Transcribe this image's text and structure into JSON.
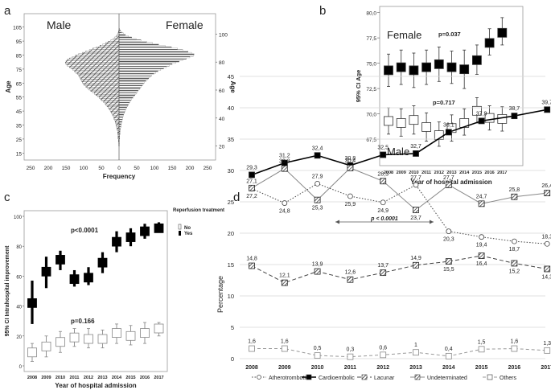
{
  "panels": {
    "a": {
      "letter": "a"
    },
    "b": {
      "letter": "b"
    },
    "c": {
      "letter": "c"
    },
    "d": {
      "letter": "d"
    }
  },
  "chart_data": [
    {
      "panel": "a",
      "type": "bar",
      "orientation": "horizontal-population-pyramid",
      "left_label": "Male",
      "right_label": "Female",
      "xlabel": "Frequency",
      "ylabel_left": "Age",
      "ylabel_right": "Age",
      "x_ticks_left": [
        "250",
        "200",
        "150",
        "100",
        "50",
        "0"
      ],
      "x_ticks_right": [
        "0",
        "50",
        "100",
        "150",
        "200",
        "250"
      ],
      "y_ticks_left": [
        "105",
        "95",
        "85",
        "75",
        "65",
        "55",
        "45",
        "35",
        "25",
        "15"
      ],
      "y_ticks_right": [
        "100",
        "80",
        "60",
        "40",
        "20"
      ],
      "ages": [
        15,
        16,
        17,
        18,
        19,
        20,
        21,
        22,
        23,
        24,
        25,
        26,
        27,
        28,
        29,
        30,
        31,
        32,
        33,
        34,
        35,
        36,
        37,
        38,
        39,
        40,
        41,
        42,
        43,
        44,
        45,
        46,
        47,
        48,
        49,
        50,
        51,
        52,
        53,
        54,
        55,
        56,
        57,
        58,
        59,
        60,
        61,
        62,
        63,
        64,
        65,
        66,
        67,
        68,
        69,
        70,
        71,
        72,
        73,
        74,
        75,
        76,
        77,
        78,
        79,
        80,
        81,
        82,
        83,
        84,
        85,
        86,
        87,
        88,
        89,
        90,
        91,
        92,
        93,
        94,
        95,
        96,
        97,
        98,
        99,
        100,
        101,
        102,
        103
      ],
      "male": [
        0,
        0,
        0,
        0,
        0,
        1,
        1,
        1,
        2,
        2,
        3,
        3,
        3,
        4,
        4,
        4,
        5,
        6,
        7,
        8,
        9,
        10,
        11,
        12,
        14,
        15,
        17,
        19,
        21,
        23,
        25,
        28,
        31,
        34,
        37,
        40,
        44,
        48,
        52,
        56,
        60,
        65,
        70,
        75,
        80,
        85,
        90,
        94,
        98,
        102,
        104,
        106,
        108,
        110,
        112,
        114,
        118,
        122,
        126,
        130,
        135,
        140,
        146,
        150,
        152,
        150,
        146,
        140,
        132,
        124,
        114,
        104,
        94,
        84,
        74,
        64,
        54,
        46,
        38,
        30,
        23,
        17,
        12,
        8,
        5,
        3,
        2,
        1,
        0
      ],
      "female": [
        0,
        0,
        0,
        0,
        0,
        1,
        1,
        1,
        1,
        1,
        2,
        2,
        2,
        3,
        3,
        3,
        4,
        4,
        5,
        6,
        6,
        7,
        8,
        9,
        10,
        11,
        12,
        13,
        15,
        16,
        18,
        20,
        22,
        24,
        26,
        28,
        30,
        33,
        36,
        39,
        42,
        45,
        48,
        51,
        54,
        57,
        60,
        63,
        66,
        69,
        72,
        76,
        80,
        84,
        88,
        92,
        98,
        104,
        110,
        118,
        126,
        134,
        142,
        150,
        160,
        170,
        180,
        190,
        200,
        210,
        212,
        205,
        195,
        180,
        165,
        148,
        130,
        112,
        95,
        78,
        62,
        48,
        36,
        26,
        18,
        12,
        7,
        4,
        2
      ]
    },
    {
      "panel": "b",
      "type": "scatter",
      "subtype": "error-bar",
      "xlabel": "Year of hospital admission",
      "ylabel": "95% CI Age",
      "categories": [
        "2008",
        "2009",
        "2010",
        "2011",
        "2012",
        "2013",
        "2014",
        "2015",
        "2016",
        "2017"
      ],
      "y_ticks": [
        "67,5",
        "70,0",
        "72,5",
        "75,0",
        "77,5",
        "80,0"
      ],
      "ylim": [
        66.0,
        80.5
      ],
      "series": [
        {
          "name": "Female",
          "marker": "filled-square",
          "mean": [
            74.3,
            74.6,
            74.3,
            74.6,
            74.9,
            74.6,
            74.4,
            75.3,
            77.0,
            78.0
          ],
          "low": [
            72.7,
            72.9,
            72.6,
            72.9,
            73.2,
            73.0,
            72.5,
            73.9,
            75.8,
            76.8
          ],
          "high": [
            75.9,
            76.3,
            76.0,
            76.3,
            76.6,
            76.2,
            76.3,
            76.8,
            78.4,
            79.5
          ]
        },
        {
          "name": "Male",
          "marker": "open-square",
          "mean": [
            69.3,
            69.1,
            69.4,
            68.7,
            67.9,
            68.6,
            69.1,
            70.3,
            69.6,
            69.5
          ],
          "low": [
            68.0,
            67.8,
            68.0,
            67.3,
            66.8,
            67.3,
            67.9,
            69.1,
            68.4,
            68.3
          ],
          "high": [
            70.6,
            70.5,
            70.8,
            70.1,
            69.2,
            69.9,
            70.5,
            71.6,
            70.8,
            70.7
          ]
        }
      ],
      "annotations": [
        "p=0.037",
        "p=0.717"
      ]
    },
    {
      "panel": "c",
      "type": "scatter",
      "subtype": "error-bar",
      "xlabel": "Year of hospital admission",
      "ylabel": "95% CI Intrahospital improvement",
      "categories": [
        "2008",
        "2009",
        "2010",
        "2011",
        "2012",
        "2013",
        "2014",
        "2015",
        "2016",
        "2017"
      ],
      "y_ticks": [
        "0",
        "20",
        "40",
        "60",
        "80",
        "100"
      ],
      "ylim": [
        0,
        105
      ],
      "legend_title": "Reperfusion treatment",
      "series": [
        {
          "name": "No",
          "marker": "open-square",
          "mean": [
            9,
            13,
            16,
            19,
            18,
            18,
            22,
            20,
            22,
            25
          ],
          "low": [
            3,
            6,
            9,
            13,
            12,
            12,
            15,
            14,
            15,
            20
          ],
          "high": [
            15,
            20,
            23,
            25,
            25,
            24,
            28,
            27,
            29,
            29
          ]
        },
        {
          "name": "Yes",
          "marker": "filled-square",
          "mean": [
            42,
            63,
            71,
            58,
            59,
            69,
            83,
            86,
            90,
            92
          ],
          "low": [
            28,
            52,
            64,
            53,
            54,
            62,
            76,
            80,
            85,
            89
          ],
          "high": [
            57,
            73,
            77,
            64,
            66,
            76,
            90,
            92,
            95,
            96
          ]
        }
      ],
      "annotations": [
        "p<0.0001",
        "p=0.166"
      ]
    },
    {
      "panel": "d",
      "type": "line",
      "xlabel": "",
      "ylabel": "Percentage",
      "categories": [
        "2008",
        "2009",
        "2010",
        "2011",
        "2012",
        "2013",
        "2014",
        "2015",
        "2016",
        "2017"
      ],
      "y_ticks": [
        "0",
        "5",
        "10",
        "15",
        "20",
        "25",
        "30",
        "35",
        "40",
        "45"
      ],
      "ylim": [
        0,
        45
      ],
      "annotation": "p < 0.0001",
      "series": [
        {
          "name": "Atherotrombotic",
          "style": "dotted-round",
          "values": [
            27.1,
            24.8,
            27.9,
            25.9,
            24.9,
            27.7,
            20.3,
            19.4,
            18.7,
            18.3
          ],
          "labels": [
            "27,1",
            "24,8",
            "27,9",
            "25,9",
            "24,9",
            "27,7",
            "20,3",
            "19,4",
            "18,7",
            "18,3"
          ]
        },
        {
          "name": "Cardioembolic",
          "style": "solid-filled-square",
          "values": [
            29.3,
            31.2,
            32.4,
            30.8,
            32.5,
            32.7,
            36.1,
            37.9,
            38.7,
            39.7
          ],
          "labels": [
            "29,3",
            "31,2",
            "32,4",
            "30,8",
            "32,5",
            "32,7",
            "36,1",
            "37,9",
            "38,7",
            "39,7"
          ]
        },
        {
          "name": "Lacunar",
          "style": "dashed-striped-square",
          "values": [
            14.8,
            12.1,
            13.9,
            12.6,
            13.7,
            14.9,
            15.5,
            16.4,
            15.2,
            14.3
          ],
          "labels": [
            "14,8",
            "12,1",
            "13,9",
            "12,6",
            "13,7",
            "14,9",
            "15,5",
            "16,4",
            "15,2",
            "14,3"
          ]
        },
        {
          "name": "Undeterminated",
          "style": "solid-striped-square",
          "values": [
            27.2,
            30.3,
            25.3,
            30.4,
            28.3,
            23.7,
            27.7,
            24.7,
            25.8,
            26.4
          ],
          "labels": [
            "27,2",
            "30,3",
            "25,3",
            "30,4",
            "28,3",
            "23,7",
            "27,7",
            "24,7",
            "25,8",
            "26,4"
          ]
        },
        {
          "name": "Others",
          "style": "dashed-open-square",
          "values": [
            1.6,
            1.6,
            0.5,
            0.3,
            0.6,
            1.0,
            0.4,
            1.5,
            1.6,
            1.3
          ],
          "labels": [
            "1,6",
            "1,6",
            "0,5",
            "0,3",
            "0,6",
            "1",
            "0,4",
            "1,5",
            "1,6",
            "1,3"
          ]
        }
      ]
    }
  ]
}
